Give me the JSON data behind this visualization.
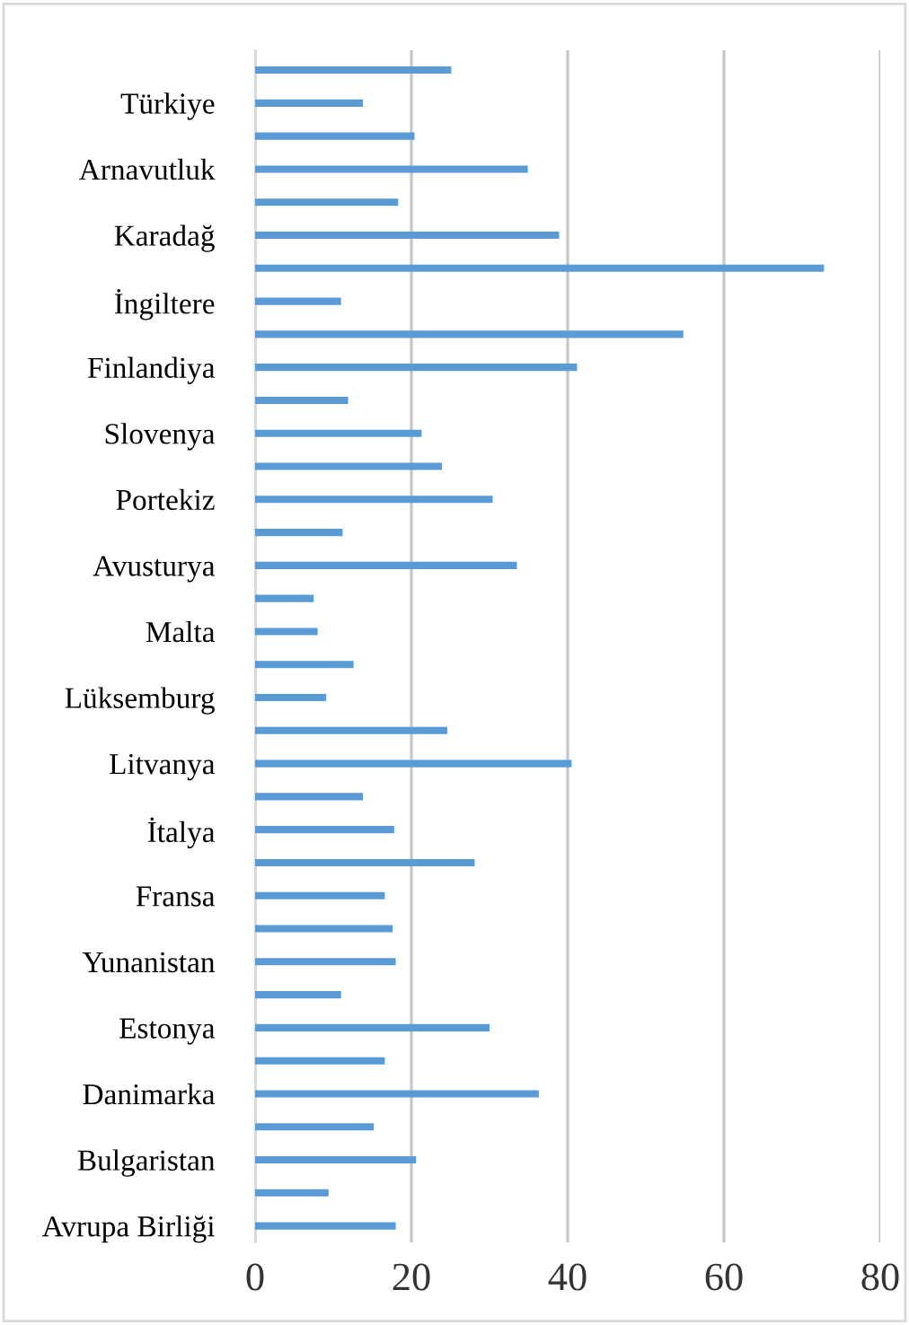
{
  "chart_data": {
    "type": "bar",
    "orientation": "horizontal",
    "categories": [
      null,
      "Türkiye",
      null,
      "Arnavutluk",
      null,
      "Karadağ",
      null,
      "İngiltere",
      null,
      "Finlandiya",
      null,
      "Slovenya",
      null,
      "Portekiz",
      null,
      "Avusturya",
      null,
      "Malta",
      null,
      "Lüksemburg",
      null,
      "Litvanya",
      null,
      "İtalya",
      null,
      "Fransa",
      null,
      "Yunanistan",
      null,
      "Estonya",
      null,
      "Danimarka",
      null,
      "Bulgaristan",
      null,
      "Avrupa Birliği"
    ],
    "values": [
      25.1,
      13.8,
      20.4,
      34.9,
      18.3,
      38.9,
      72.8,
      11.0,
      54.8,
      41.2,
      11.9,
      21.3,
      23.9,
      30.4,
      11.2,
      33.5,
      7.5,
      8.0,
      12.6,
      9.1,
      24.6,
      40.5,
      13.8,
      17.8,
      28.1,
      16.6,
      17.6,
      18.0,
      11.0,
      30.0,
      16.6,
      36.3,
      15.2,
      20.6,
      9.4,
      18.0
    ],
    "color": "#5b9bd5",
    "xlim": [
      0,
      80
    ],
    "xticks": [
      0,
      20,
      40,
      60,
      80
    ],
    "grid": "x",
    "legend": false
  }
}
